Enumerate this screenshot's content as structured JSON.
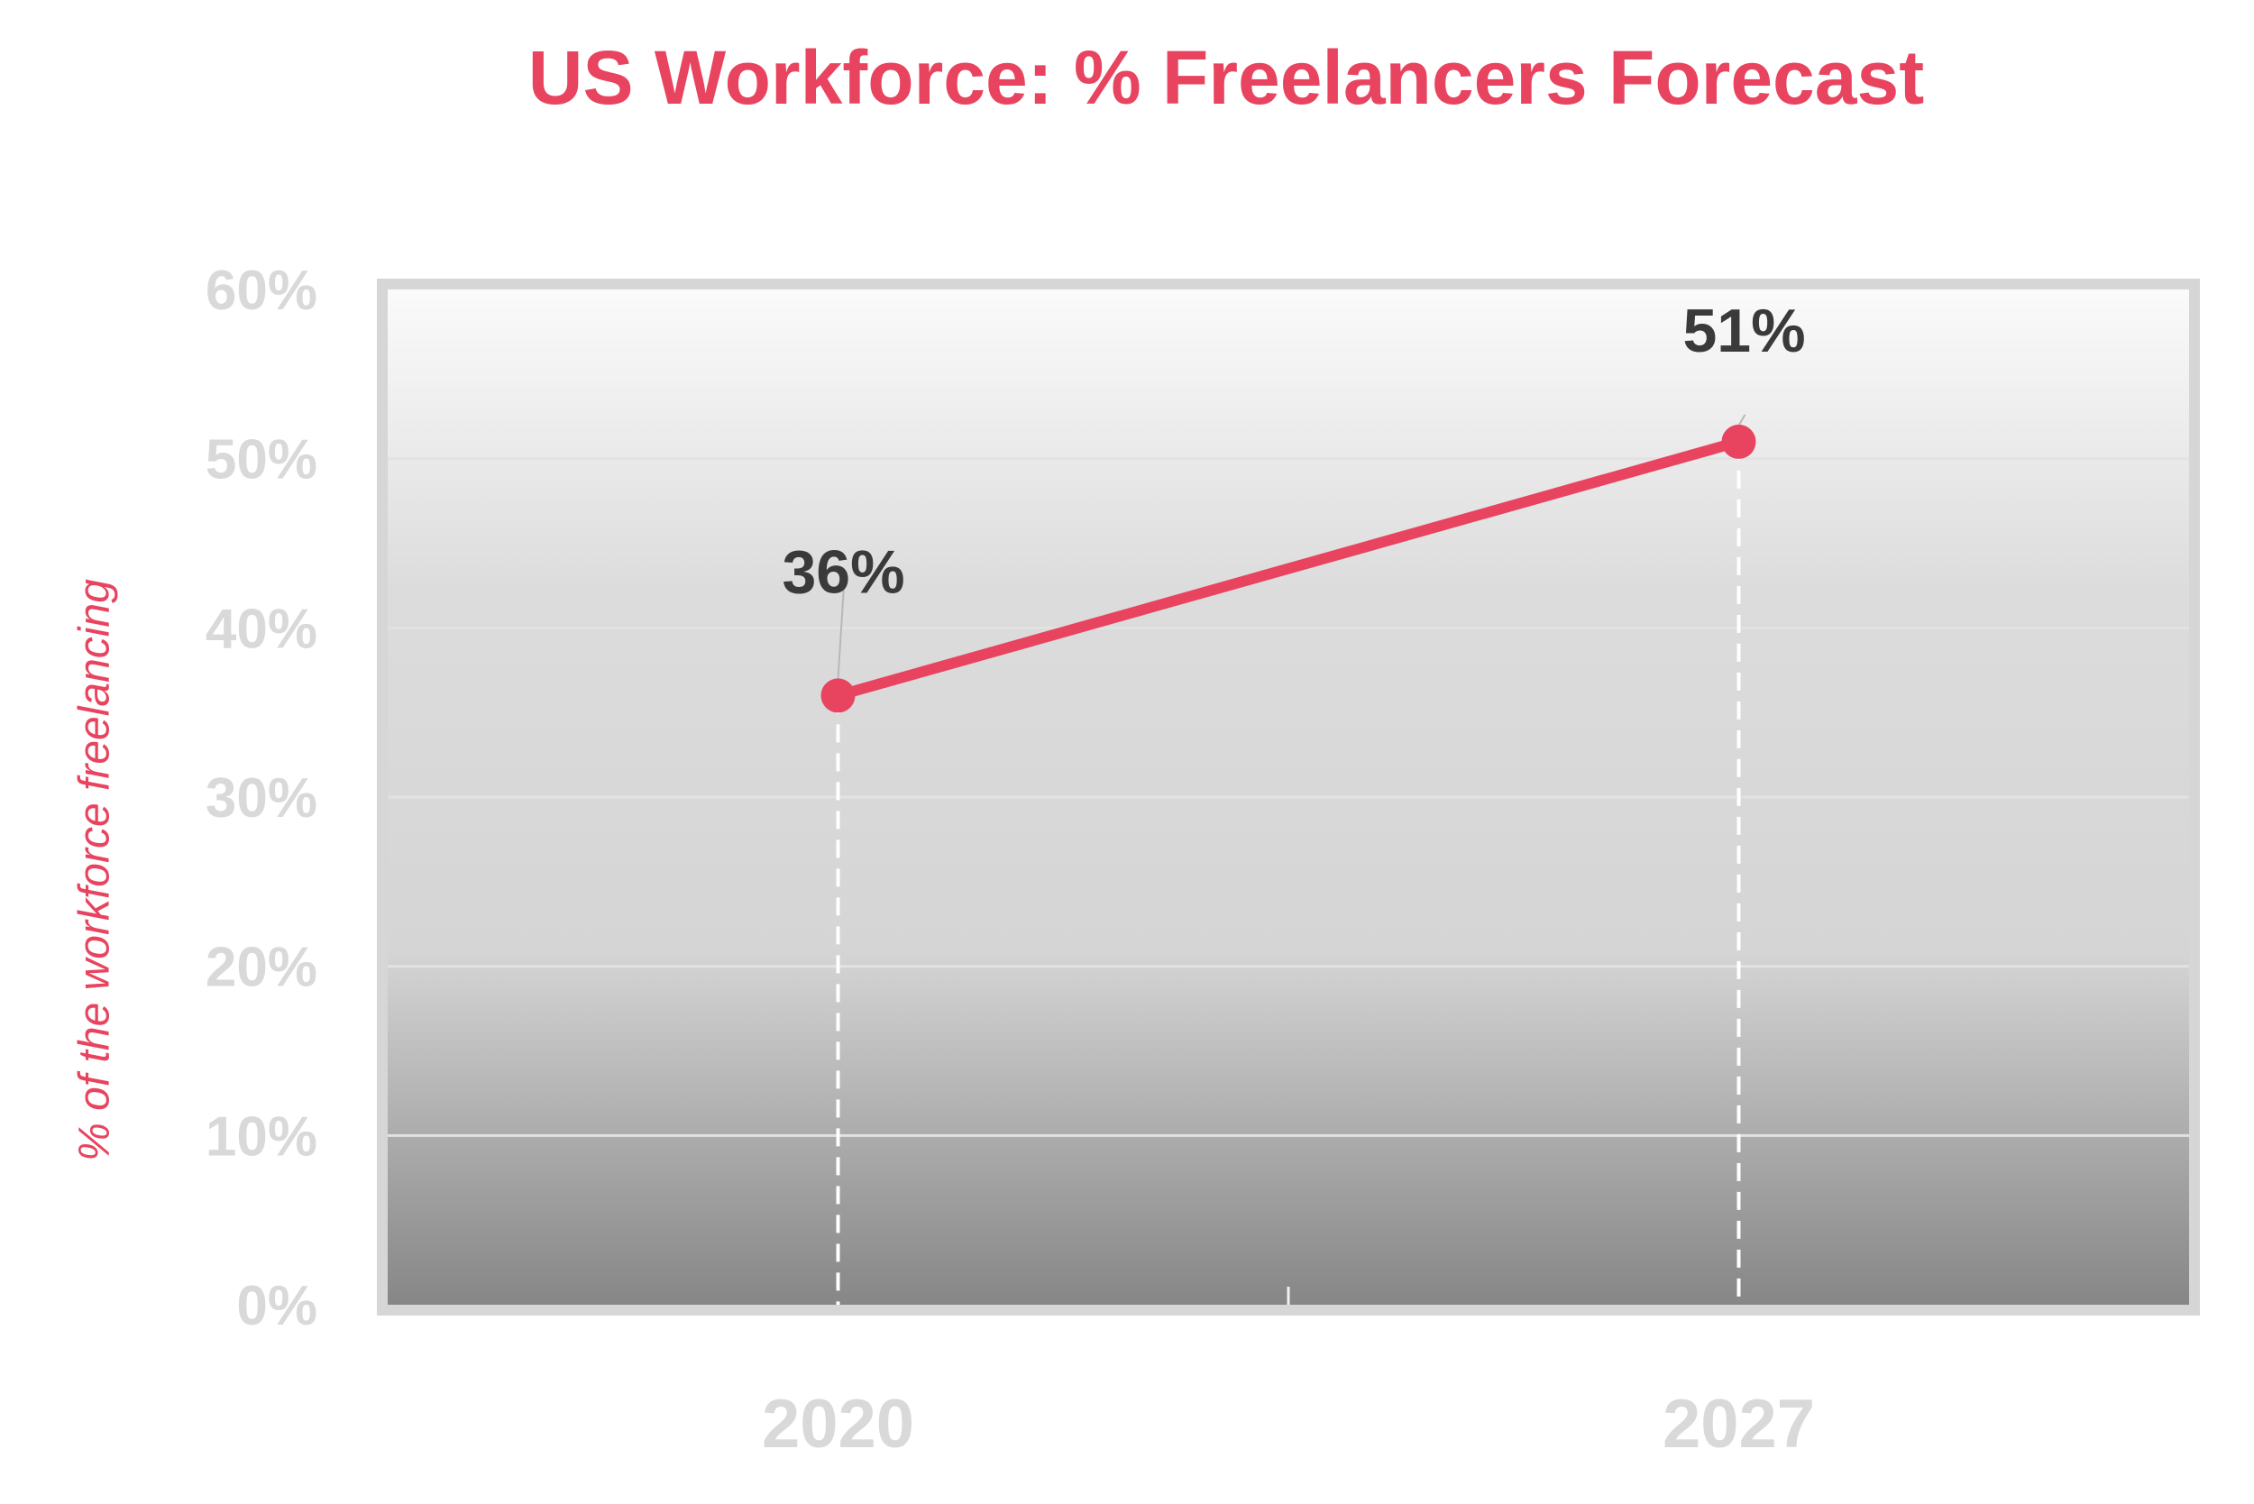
{
  "colors": {
    "accent": "#E8445F",
    "tick": "#D9D9D9",
    "frame": "#D6D6D6",
    "label": "#3A3A3A"
  },
  "chart_data": {
    "type": "line",
    "title": "US Workforce: % Freelancers Forecast",
    "xlabel": "",
    "ylabel": "% of the workforce freelancing",
    "categories": [
      "2020",
      "2027"
    ],
    "series": [
      {
        "values": [
          36,
          51
        ]
      }
    ],
    "data_labels": [
      "36%",
      "51%"
    ],
    "yticks": [
      "0%",
      "10%",
      "20%",
      "30%",
      "40%",
      "50%",
      "60%"
    ],
    "ylim": [
      0,
      60
    ],
    "grid": true,
    "legend": "none"
  }
}
